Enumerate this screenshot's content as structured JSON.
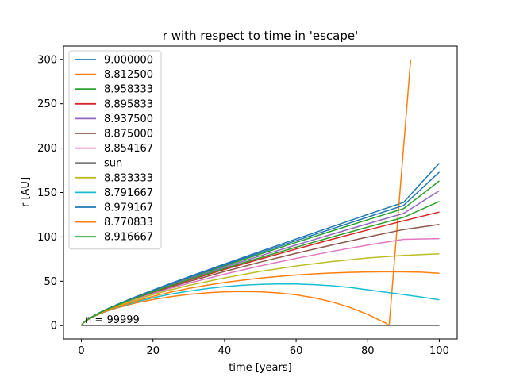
{
  "chart_data": {
    "type": "line",
    "title": "r with respect to time in 'escape'",
    "xlabel": "time [years]",
    "ylabel": "r [AU]",
    "xlim": [
      -5,
      105
    ],
    "ylim": [
      -15,
      315
    ],
    "xticks": [
      0,
      20,
      40,
      60,
      80,
      100
    ],
    "yticks": [
      0,
      50,
      100,
      150,
      200,
      250,
      300
    ],
    "grid": false,
    "legend_position": "top-left",
    "annotation": {
      "text": "n = 99999",
      "x": 1,
      "y": 3
    },
    "series": [
      {
        "name": "9.000000",
        "color": "#1f77b4",
        "x": [
          0,
          0.5,
          1,
          2,
          3,
          5,
          7.5,
          10,
          15,
          20,
          25,
          30,
          40,
          50,
          60,
          70,
          80,
          90,
          100
        ],
        "y": [
          0,
          3,
          4.8,
          7.7,
          10.1,
          14.5,
          19.3,
          23.8,
          32.2,
          40.0,
          47.6,
          55.0,
          69.4,
          83.6,
          97.6,
          111.4,
          125.2,
          138.9,
          183
        ]
      },
      {
        "name": "8.812500",
        "color": "#ff7f0e",
        "x": [
          0,
          0.5,
          1,
          2,
          3,
          5,
          7.5,
          10,
          15,
          20,
          25,
          30,
          35,
          40,
          45,
          50,
          55,
          60,
          65,
          70,
          75,
          80,
          85,
          86,
          92
        ],
        "y": [
          0,
          2.9,
          4.6,
          7.2,
          9.4,
          13.0,
          16.8,
          20.0,
          25.3,
          29.4,
          32.7,
          35.2,
          37.0,
          38.1,
          38.5,
          38.1,
          36.9,
          34.7,
          31.4,
          26.8,
          20.6,
          12.6,
          3,
          0,
          300
        ]
      },
      {
        "name": "8.958333",
        "color": "#2ca02c",
        "x": [
          0,
          0.5,
          1,
          2,
          3,
          5,
          7.5,
          10,
          15,
          20,
          25,
          30,
          40,
          50,
          60,
          70,
          80,
          90,
          100
        ],
        "y": [
          0,
          3,
          4.8,
          7.6,
          10.0,
          14.4,
          19.1,
          23.5,
          31.7,
          39.3,
          46.6,
          53.7,
          67.4,
          80.7,
          93.8,
          106.6,
          119.3,
          131.8,
          163
        ]
      },
      {
        "name": "8.895833",
        "color": "#d62728",
        "x": [
          0,
          0.5,
          1,
          2,
          3,
          5,
          7.5,
          10,
          15,
          20,
          25,
          30,
          40,
          50,
          60,
          70,
          80,
          90,
          100
        ],
        "y": [
          0,
          3,
          4.7,
          7.5,
          9.8,
          14.1,
          18.7,
          22.9,
          30.7,
          37.8,
          44.6,
          51.0,
          63.3,
          75.0,
          86.3,
          97.2,
          107.8,
          118.1,
          128
        ]
      },
      {
        "name": "8.937500",
        "color": "#9467bd",
        "x": [
          0,
          0.5,
          1,
          2,
          3,
          5,
          7.5,
          10,
          15,
          20,
          25,
          30,
          40,
          50,
          60,
          70,
          80,
          90,
          100
        ],
        "y": [
          0,
          3,
          4.8,
          7.6,
          9.9,
          14.3,
          19.0,
          23.3,
          31.4,
          38.8,
          45.9,
          52.7,
          65.9,
          78.6,
          90.9,
          103.0,
          114.8,
          126.4,
          152
        ]
      },
      {
        "name": "8.875000",
        "color": "#8c564b",
        "x": [
          0,
          0.5,
          1,
          2,
          3,
          5,
          7.5,
          10,
          15,
          20,
          25,
          30,
          40,
          50,
          60,
          70,
          80,
          90,
          100
        ],
        "y": [
          0,
          3,
          4.7,
          7.5,
          9.8,
          14.0,
          18.5,
          22.6,
          30.2,
          37.0,
          43.5,
          49.6,
          61.0,
          71.6,
          81.5,
          90.9,
          99.8,
          108.2,
          114
        ]
      },
      {
        "name": "8.854167",
        "color": "#e377c2",
        "x": [
          0,
          0.5,
          1,
          2,
          3,
          5,
          7.5,
          10,
          15,
          20,
          25,
          30,
          40,
          50,
          60,
          70,
          80,
          90,
          100
        ],
        "y": [
          0,
          3,
          4.7,
          7.4,
          9.7,
          13.9,
          18.3,
          22.3,
          29.6,
          36.1,
          42.1,
          47.7,
          58.0,
          67.3,
          75.8,
          83.6,
          90.7,
          97.2,
          98
        ]
      },
      {
        "name": "sun",
        "color": "#7f7f7f",
        "x": [
          0,
          100
        ],
        "y": [
          0,
          0
        ]
      },
      {
        "name": "8.833333",
        "color": "#bcbd22",
        "x": [
          0,
          0.5,
          1,
          2,
          3,
          5,
          7.5,
          10,
          15,
          20,
          25,
          30,
          40,
          50,
          60,
          70,
          80,
          90,
          100
        ],
        "y": [
          0,
          3,
          4.7,
          7.4,
          9.6,
          13.7,
          18.0,
          21.9,
          28.9,
          35.0,
          40.4,
          45.3,
          53.8,
          61.1,
          67.2,
          72.2,
          76.2,
          79.1,
          81
        ]
      },
      {
        "name": "8.791667",
        "color": "#17becf",
        "x": [
          0,
          0.5,
          1,
          2,
          3,
          5,
          7.5,
          10,
          15,
          20,
          25,
          30,
          35,
          40,
          45,
          50,
          55,
          60,
          65,
          70,
          75,
          80,
          85,
          90,
          95,
          100
        ],
        "y": [
          0,
          3,
          4.6,
          7.2,
          9.4,
          13.2,
          17.1,
          20.6,
          26.5,
          31.4,
          35.5,
          38.9,
          41.7,
          43.9,
          45.5,
          46.5,
          47.0,
          46.9,
          46.2,
          44.9,
          43.0,
          40.4,
          37.7,
          35.0,
          32.2,
          29
        ]
      },
      {
        "name": "8.979167",
        "color": "#1f77b4",
        "x": [
          0,
          0.5,
          1,
          2,
          3,
          5,
          7.5,
          10,
          15,
          20,
          25,
          30,
          40,
          50,
          60,
          70,
          80,
          90,
          100
        ],
        "y": [
          0,
          3,
          4.8,
          7.7,
          10.0,
          14.5,
          19.2,
          23.6,
          32.0,
          39.7,
          47.1,
          54.4,
          68.4,
          82.2,
          95.7,
          109.0,
          122.3,
          135.4,
          173
        ]
      },
      {
        "name": "8.770833",
        "color": "#ff7f0e",
        "x": [
          0,
          0.5,
          1,
          2,
          3,
          5,
          7.5,
          10,
          15,
          20,
          25,
          30,
          35,
          40,
          45,
          50,
          55,
          60,
          65,
          70,
          75,
          80,
          85,
          90,
          95,
          100
        ],
        "y": [
          0,
          3,
          4.6,
          7.3,
          9.5,
          13.4,
          17.4,
          21.1,
          27.5,
          33.0,
          37.8,
          41.9,
          45.5,
          48.6,
          51.2,
          53.5,
          55.4,
          57.0,
          58.3,
          59.3,
          60.0,
          60.5,
          60.7,
          60.6,
          60.2,
          59
        ]
      },
      {
        "name": "8.916667",
        "color": "#2ca02c",
        "x": [
          0,
          0.5,
          1,
          2,
          3,
          5,
          7.5,
          10,
          15,
          20,
          25,
          30,
          40,
          50,
          60,
          70,
          80,
          90,
          100
        ],
        "y": [
          0,
          3,
          4.7,
          7.5,
          9.9,
          14.2,
          18.8,
          23.1,
          31.0,
          38.3,
          45.2,
          51.8,
          64.5,
          76.6,
          88.4,
          99.8,
          111.0,
          121.9,
          140
        ]
      }
    ]
  }
}
